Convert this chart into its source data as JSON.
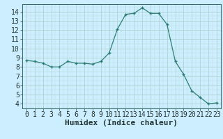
{
  "x": [
    0,
    1,
    2,
    3,
    4,
    5,
    6,
    7,
    8,
    9,
    10,
    11,
    12,
    13,
    14,
    15,
    16,
    17,
    18,
    19,
    20,
    21,
    22,
    23
  ],
  "y": [
    8.7,
    8.6,
    8.4,
    8.0,
    8.0,
    8.6,
    8.4,
    8.4,
    8.3,
    8.6,
    9.5,
    12.1,
    13.7,
    13.8,
    14.4,
    13.8,
    13.8,
    12.6,
    8.6,
    7.2,
    5.4,
    4.7,
    4.0,
    4.1
  ],
  "line_color": "#2d7d72",
  "marker": "+",
  "marker_color": "#2d7d72",
  "bg_color": "#cceeff",
  "grid_major_color": "#aacccc",
  "grid_minor_color": "#bbdddd",
  "xlabel": "Humidex (Indice chaleur)",
  "xlim": [
    -0.5,
    23.5
  ],
  "ylim": [
    3.5,
    14.8
  ],
  "yticks": [
    4,
    5,
    6,
    7,
    8,
    9,
    10,
    11,
    12,
    13,
    14
  ],
  "xticks": [
    0,
    1,
    2,
    3,
    4,
    5,
    6,
    7,
    8,
    9,
    10,
    11,
    12,
    13,
    14,
    15,
    16,
    17,
    18,
    19,
    20,
    21,
    22,
    23
  ],
  "tick_font_size": 7.0,
  "label_font_size": 8.0,
  "spine_color": "#336666"
}
